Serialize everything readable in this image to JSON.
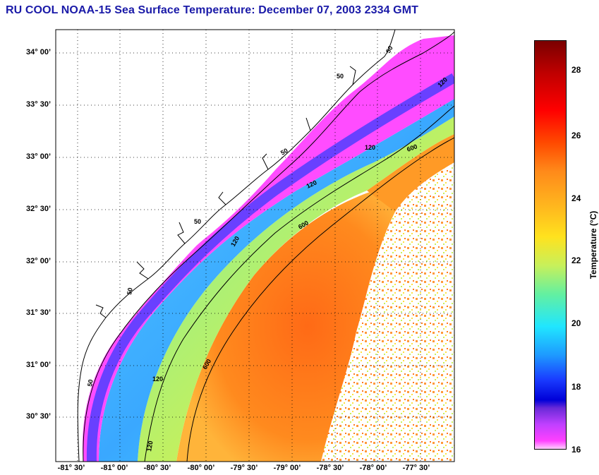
{
  "title": "RU COOL  NOAA-15  Sea Surface Temperature:  December 07, 2003 2334 GMT",
  "y_ticks": [
    "34° 00’",
    "33° 30’",
    "33° 00’",
    "32° 30’",
    "32° 00’",
    "31° 30’",
    "31° 00’",
    "30° 30’"
  ],
  "x_ticks": [
    "-81° 30’",
    "-81° 00’",
    "-80° 30’",
    "-80° 00’",
    "-79° 30’",
    "-79° 00’",
    "-78° 30’",
    "-78° 00’",
    "-77° 30’"
  ],
  "colorbar": {
    "label": "Temperature (°C)",
    "ticks": [
      "28",
      "26",
      "24",
      "22",
      "20",
      "18",
      "16"
    ],
    "min": 16,
    "max": 29
  },
  "contour_labels": [
    "50",
    "50",
    "50",
    "50",
    "50",
    "50",
    "120",
    "120",
    "120",
    "120",
    "120",
    "120",
    "600",
    "600",
    "600"
  ],
  "colors": {
    "title": "#1a1aa8",
    "land": "#ffffff",
    "coastline": "#000000",
    "grid": "#000000",
    "cold_shelf": "#ff40ff",
    "mid_shelf": "#1ea0ff",
    "slope": "#a8f05a",
    "gulf_stream": "#ff7a1e"
  }
}
